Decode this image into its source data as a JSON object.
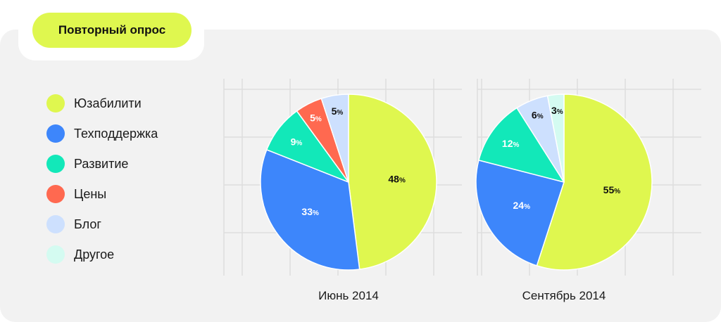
{
  "header": {
    "title": "Повторный опрос",
    "title_bg": "#dff74f"
  },
  "legend": {
    "items": [
      {
        "label": "Юзабилити",
        "color": "#dff74f"
      },
      {
        "label": "Техподдержка",
        "color": "#3d86fb"
      },
      {
        "label": "Развитие",
        "color": "#12e8b9"
      },
      {
        "label": "Цены",
        "color": "#ff6950"
      },
      {
        "label": "Блог",
        "color": "#cde0fe"
      },
      {
        "label": "Другое",
        "color": "#d4fbf1"
      }
    ]
  },
  "chart_data": [
    {
      "type": "pie",
      "title": "Июнь 2014",
      "categories": [
        "Юзабилити",
        "Техподдержка",
        "Развитие",
        "Цены",
        "Блог",
        "Другое"
      ],
      "values": [
        48,
        33,
        9,
        5,
        5,
        0
      ],
      "value_labels": [
        "48",
        "33",
        "9",
        "5",
        "5",
        ""
      ],
      "unit": "%"
    },
    {
      "type": "pie",
      "title": "Сентябрь 2014",
      "categories": [
        "Юзабилити",
        "Техподдержка",
        "Развитие",
        "Цены",
        "Блог",
        "Другое"
      ],
      "values": [
        55,
        24,
        12,
        0,
        6,
        3
      ],
      "value_labels": [
        "55",
        "24",
        "12",
        "",
        "6",
        "3"
      ],
      "unit": "%"
    }
  ]
}
